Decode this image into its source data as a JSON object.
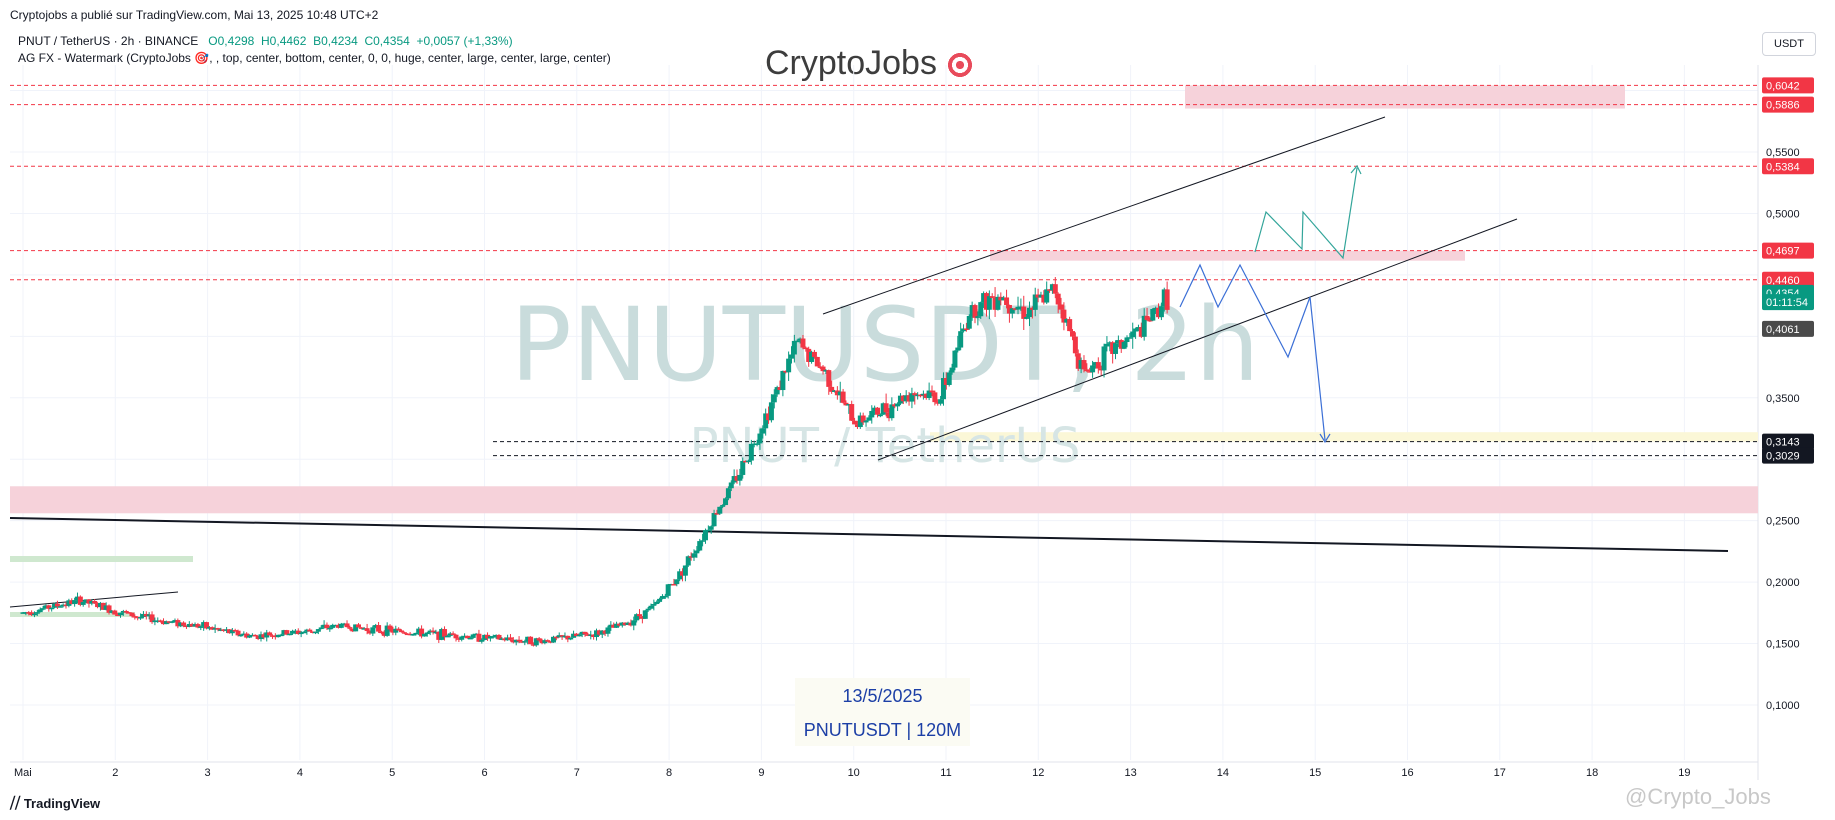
{
  "header": {
    "published": "Cryptojobs a publié sur TradingView.com, Mai 13, 2025 10:48 UTC+2",
    "symbol_line": "PNUT / TetherUS · 2h · BINANCE",
    "ohlc": {
      "o": "O0,4298",
      "h": "H0,4462",
      "b": "B0,4234",
      "c": "C0,4354",
      "change": "+0,0057 (+1,33%)"
    },
    "indicator": "AG FX - Watermark (CryptoJobs 🎯, , top, center, bottom, center, 0, 0, huge, center, large, center, large, center)",
    "currency": "USDT"
  },
  "watermark": {
    "brand": "CryptoJobs",
    "brand_icon": "target-icon",
    "ticker": "PNUTUSDT, 2h",
    "pair": "PNUT / TetherUS"
  },
  "date_box": {
    "date": "13/5/2025",
    "caption": "PNUTUSDT | 120M"
  },
  "footer": {
    "logo": "TradingView",
    "corner_text": "@Crypto_Jobs"
  },
  "colors": {
    "up": "#089981",
    "down": "#f23645",
    "zone_red": "#f6d2da",
    "zone_yellow": "#fbf7d7",
    "zone_green": "#cfe8cf",
    "projection": "#3b6fd6",
    "projection_green": "#33a59a"
  },
  "chart_data": {
    "type": "candlestick",
    "interval": "2h",
    "y_ticks": [
      "0,1000",
      "0,1500",
      "0,2000",
      "0,2500",
      "0,3500",
      "0,5000",
      "0,5500"
    ],
    "x_ticks": [
      "Mai",
      "2",
      "3",
      "4",
      "5",
      "6",
      "7",
      "8",
      "9",
      "10",
      "11",
      "12",
      "13",
      "14",
      "15",
      "16",
      "17",
      "18",
      "19"
    ],
    "price_labels": [
      {
        "value": "0,6042",
        "price": 0.6042,
        "kind": "red"
      },
      {
        "value": "0,5886",
        "price": 0.5886,
        "kind": "red"
      },
      {
        "value": "0,5384",
        "price": 0.5384,
        "kind": "red"
      },
      {
        "value": "0,4697",
        "price": 0.4697,
        "kind": "red"
      },
      {
        "value": "0,4460",
        "price": 0.446,
        "kind": "red"
      },
      {
        "value": "0,4354",
        "price": 0.4354,
        "kind": "green"
      },
      {
        "value": "01:11:54",
        "price": 0.4278,
        "kind": "green"
      },
      {
        "value": "0,4061",
        "price": 0.4061,
        "kind": "gray"
      },
      {
        "value": "0,3143",
        "price": 0.3143,
        "kind": "black"
      },
      {
        "value": "0,3029",
        "price": 0.3029,
        "kind": "black"
      }
    ],
    "ylim": [
      0.06,
      0.64
    ],
    "candles_daily_closes": [
      0.175,
      0.18,
      0.185,
      0.178,
      0.172,
      0.168,
      0.165,
      0.16,
      0.156,
      0.158,
      0.16,
      0.165,
      0.162,
      0.16,
      0.158,
      0.157,
      0.155,
      0.153,
      0.152,
      0.155,
      0.158,
      0.166,
      0.18,
      0.21,
      0.25,
      0.29,
      0.34,
      0.395,
      0.37,
      0.33,
      0.34,
      0.355,
      0.35,
      0.42,
      0.435,
      0.42,
      0.438,
      0.37,
      0.39,
      0.405,
      0.4354
    ]
  }
}
